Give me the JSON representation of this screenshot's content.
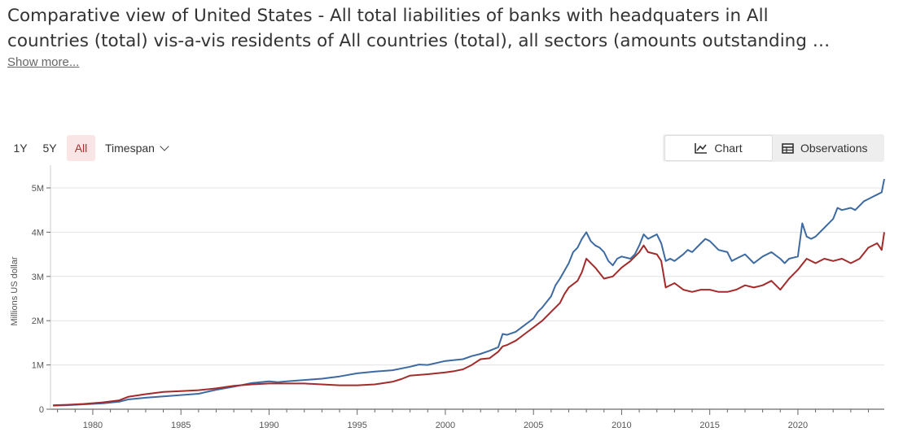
{
  "header": {
    "title_line1": "Comparative view of United States - All total liabilities of banks with headquaters in All",
    "title_line2": "countries (total) vis-a-vis residents of All countries (total), all sectors (amounts outstanding …",
    "show_more": "Show more..."
  },
  "controls": {
    "range_buttons": [
      "1Y",
      "5Y",
      "All"
    ],
    "active_range": "All",
    "timespan_label": "Timespan",
    "chart_label": "Chart",
    "observations_label": "Observations"
  },
  "colors": {
    "blue_series": "#3d6aa1",
    "red_series": "#a32b2b",
    "active_bg": "#f9e5e5"
  },
  "chart_data": {
    "type": "line",
    "ylabel": "Millions US dollar",
    "xlim": [
      1977.6,
      2024.9
    ],
    "ylim": [
      0,
      5200000
    ],
    "x_ticks": [
      1980,
      1985,
      1990,
      1995,
      2000,
      2005,
      2010,
      2015,
      2020
    ],
    "y_ticks": [
      {
        "value": 0,
        "label": "0"
      },
      {
        "value": 1000000,
        "label": "1M"
      },
      {
        "value": 2000000,
        "label": "2M"
      },
      {
        "value": 3000000,
        "label": "3M"
      },
      {
        "value": 4000000,
        "label": "4M"
      },
      {
        "value": 5000000,
        "label": "5M"
      }
    ],
    "grid": true,
    "series": [
      {
        "color": "#3d6aa1",
        "points": [
          [
            1977.75,
            80000
          ],
          [
            1978.5,
            90000
          ],
          [
            1979.5,
            110000
          ],
          [
            1980.5,
            130000
          ],
          [
            1981.5,
            170000
          ],
          [
            1982,
            220000
          ],
          [
            1983,
            260000
          ],
          [
            1984,
            290000
          ],
          [
            1985,
            320000
          ],
          [
            1986,
            350000
          ],
          [
            1987,
            440000
          ],
          [
            1988,
            510000
          ],
          [
            1989,
            590000
          ],
          [
            1990,
            630000
          ],
          [
            1990.5,
            610000
          ],
          [
            1991,
            630000
          ],
          [
            1992,
            660000
          ],
          [
            1993,
            690000
          ],
          [
            1994,
            740000
          ],
          [
            1995,
            810000
          ],
          [
            1996,
            850000
          ],
          [
            1997,
            880000
          ],
          [
            1998,
            960000
          ],
          [
            1998.5,
            1010000
          ],
          [
            1999,
            1000000
          ],
          [
            2000,
            1090000
          ],
          [
            2001,
            1130000
          ],
          [
            2001.5,
            1200000
          ],
          [
            2002,
            1250000
          ],
          [
            2002.5,
            1320000
          ],
          [
            2003,
            1400000
          ],
          [
            2003.25,
            1700000
          ],
          [
            2003.5,
            1680000
          ],
          [
            2004,
            1750000
          ],
          [
            2004.5,
            1900000
          ],
          [
            2005,
            2050000
          ],
          [
            2005.25,
            2200000
          ],
          [
            2005.5,
            2300000
          ],
          [
            2006,
            2550000
          ],
          [
            2006.25,
            2800000
          ],
          [
            2006.5,
            2950000
          ],
          [
            2007,
            3300000
          ],
          [
            2007.25,
            3550000
          ],
          [
            2007.5,
            3650000
          ],
          [
            2007.75,
            3850000
          ],
          [
            2008,
            4000000
          ],
          [
            2008.25,
            3800000
          ],
          [
            2008.5,
            3700000
          ],
          [
            2008.75,
            3650000
          ],
          [
            2009,
            3550000
          ],
          [
            2009.25,
            3350000
          ],
          [
            2009.5,
            3250000
          ],
          [
            2009.75,
            3400000
          ],
          [
            2010,
            3450000
          ],
          [
            2010.5,
            3400000
          ],
          [
            2010.75,
            3500000
          ],
          [
            2011,
            3700000
          ],
          [
            2011.25,
            3950000
          ],
          [
            2011.5,
            3850000
          ],
          [
            2011.75,
            3900000
          ],
          [
            2012,
            3950000
          ],
          [
            2012.25,
            3750000
          ],
          [
            2012.5,
            3350000
          ],
          [
            2012.75,
            3400000
          ],
          [
            2013,
            3350000
          ],
          [
            2013.5,
            3500000
          ],
          [
            2013.75,
            3600000
          ],
          [
            2014,
            3550000
          ],
          [
            2014.5,
            3750000
          ],
          [
            2014.75,
            3850000
          ],
          [
            2015,
            3800000
          ],
          [
            2015.25,
            3700000
          ],
          [
            2015.5,
            3600000
          ],
          [
            2016,
            3550000
          ],
          [
            2016.25,
            3350000
          ],
          [
            2016.5,
            3400000
          ],
          [
            2017,
            3500000
          ],
          [
            2017.5,
            3300000
          ],
          [
            2018,
            3450000
          ],
          [
            2018.5,
            3550000
          ],
          [
            2019,
            3400000
          ],
          [
            2019.25,
            3300000
          ],
          [
            2019.5,
            3400000
          ],
          [
            2020,
            3450000
          ],
          [
            2020.25,
            4200000
          ],
          [
            2020.5,
            3900000
          ],
          [
            2020.75,
            3850000
          ],
          [
            2021,
            3900000
          ],
          [
            2021.5,
            4100000
          ],
          [
            2022,
            4300000
          ],
          [
            2022.25,
            4550000
          ],
          [
            2022.5,
            4500000
          ],
          [
            2023,
            4550000
          ],
          [
            2023.25,
            4500000
          ],
          [
            2023.5,
            4600000
          ],
          [
            2023.75,
            4700000
          ],
          [
            2024,
            4750000
          ],
          [
            2024.25,
            4800000
          ],
          [
            2024.5,
            4850000
          ],
          [
            2024.75,
            4900000
          ],
          [
            2024.9,
            5200000
          ]
        ]
      },
      {
        "color": "#a32b2b",
        "points": [
          [
            1977.75,
            90000
          ],
          [
            1978.5,
            100000
          ],
          [
            1979.5,
            120000
          ],
          [
            1980.5,
            150000
          ],
          [
            1981.5,
            200000
          ],
          [
            1982,
            280000
          ],
          [
            1983,
            340000
          ],
          [
            1984,
            390000
          ],
          [
            1984.5,
            400000
          ],
          [
            1985,
            410000
          ],
          [
            1986,
            430000
          ],
          [
            1987,
            470000
          ],
          [
            1988,
            530000
          ],
          [
            1989,
            560000
          ],
          [
            1990,
            580000
          ],
          [
            1991,
            580000
          ],
          [
            1992,
            580000
          ],
          [
            1993,
            560000
          ],
          [
            1994,
            540000
          ],
          [
            1995,
            540000
          ],
          [
            1996,
            560000
          ],
          [
            1997,
            620000
          ],
          [
            1997.5,
            680000
          ],
          [
            1998,
            760000
          ],
          [
            1999,
            790000
          ],
          [
            2000,
            830000
          ],
          [
            2000.5,
            860000
          ],
          [
            2001,
            900000
          ],
          [
            2001.5,
            1000000
          ],
          [
            2002,
            1130000
          ],
          [
            2002.5,
            1150000
          ],
          [
            2003,
            1300000
          ],
          [
            2003.25,
            1420000
          ],
          [
            2003.5,
            1450000
          ],
          [
            2004,
            1550000
          ],
          [
            2004.5,
            1700000
          ],
          [
            2005,
            1850000
          ],
          [
            2005.5,
            2000000
          ],
          [
            2006,
            2200000
          ],
          [
            2006.5,
            2400000
          ],
          [
            2006.75,
            2600000
          ],
          [
            2007,
            2750000
          ],
          [
            2007.5,
            2900000
          ],
          [
            2007.75,
            3100000
          ],
          [
            2008,
            3400000
          ],
          [
            2008.5,
            3200000
          ],
          [
            2009,
            2950000
          ],
          [
            2009.5,
            3000000
          ],
          [
            2010,
            3200000
          ],
          [
            2010.5,
            3350000
          ],
          [
            2011,
            3550000
          ],
          [
            2011.25,
            3700000
          ],
          [
            2011.5,
            3550000
          ],
          [
            2012,
            3500000
          ],
          [
            2012.25,
            3350000
          ],
          [
            2012.5,
            2750000
          ],
          [
            2013,
            2850000
          ],
          [
            2013.5,
            2700000
          ],
          [
            2014,
            2650000
          ],
          [
            2014.5,
            2700000
          ],
          [
            2015,
            2700000
          ],
          [
            2015.5,
            2650000
          ],
          [
            2016,
            2650000
          ],
          [
            2016.5,
            2700000
          ],
          [
            2017,
            2800000
          ],
          [
            2017.5,
            2750000
          ],
          [
            2018,
            2800000
          ],
          [
            2018.5,
            2900000
          ],
          [
            2019,
            2700000
          ],
          [
            2019.5,
            2950000
          ],
          [
            2020,
            3150000
          ],
          [
            2020.5,
            3400000
          ],
          [
            2021,
            3300000
          ],
          [
            2021.5,
            3400000
          ],
          [
            2022,
            3350000
          ],
          [
            2022.5,
            3400000
          ],
          [
            2023,
            3300000
          ],
          [
            2023.5,
            3400000
          ],
          [
            2024,
            3650000
          ],
          [
            2024.5,
            3750000
          ],
          [
            2024.75,
            3600000
          ],
          [
            2024.9,
            4000000
          ]
        ]
      }
    ]
  }
}
